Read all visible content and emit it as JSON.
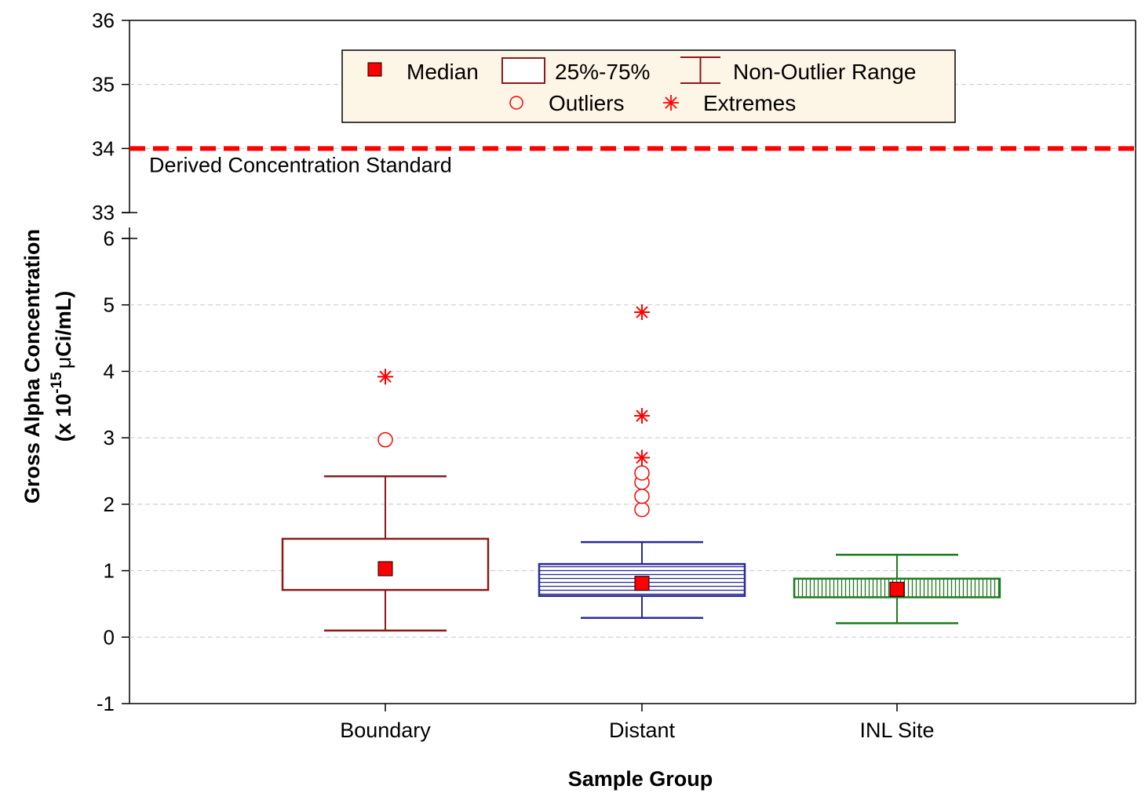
{
  "chart_data": {
    "type": "boxplot",
    "xlabel": "Sample Group",
    "ylabel_line1": "Gross Alpha Concentration",
    "ylabel_line2_prefix": "(x 10",
    "ylabel_line2_exponent": "-15",
    "ylabel_line2_mu": "μ",
    "ylabel_line2_suffix": "Ci/mL)",
    "categories": [
      "Boundary",
      "Distant",
      "INL Site"
    ],
    "y_axis_lower": {
      "ylim": [
        -1,
        6
      ],
      "ticks": [
        "6",
        "5",
        "4",
        "3",
        "2",
        "1",
        "0",
        "-1"
      ]
    },
    "y_axis_upper": {
      "ylim": [
        33,
        36
      ],
      "ticks": [
        "36",
        "35",
        "34",
        "33"
      ]
    },
    "grid": true,
    "series": [
      {
        "name": "Boundary",
        "color": "#8b1a1a",
        "fill": "none",
        "median": 1.03,
        "q1": 0.71,
        "q3": 1.48,
        "whisker_low": 0.1,
        "whisker_high": 2.42,
        "outliers": [
          2.97
        ],
        "extremes": [
          3.92
        ]
      },
      {
        "name": "Distant",
        "color": "#2a2a9c",
        "fill": "horizontal-hatch",
        "median": 0.81,
        "q1": 0.62,
        "q3": 1.1,
        "whisker_low": 0.29,
        "whisker_high": 1.43,
        "outliers": [
          1.92,
          2.12,
          2.33,
          2.47
        ],
        "extremes": [
          2.7,
          3.33,
          4.89
        ]
      },
      {
        "name": "INL Site",
        "color": "#1e7a1e",
        "fill": "vertical-hatch",
        "median": 0.72,
        "q1": 0.6,
        "q3": 0.88,
        "whisker_low": 0.21,
        "whisker_high": 1.24,
        "outliers": [],
        "extremes": []
      }
    ],
    "reference_line": {
      "value": 34,
      "label": "Derived Concentration Standard",
      "color": "#ff0000",
      "style": "dashed"
    },
    "legend": {
      "placement": "top-center",
      "items": [
        {
          "key": "median",
          "label": "Median"
        },
        {
          "key": "box",
          "label": "25%-75%"
        },
        {
          "key": "range",
          "label": "Non-Outlier Range"
        },
        {
          "key": "outliers",
          "label": "Outliers"
        },
        {
          "key": "extremes",
          "label": "Extremes"
        }
      ]
    },
    "colors": {
      "median_marker": "#ff0000",
      "outlier": "#ff0000",
      "extreme": "#ff0000",
      "grid": "#c8c8c8",
      "legend_bg": "#fdf5e6"
    }
  }
}
